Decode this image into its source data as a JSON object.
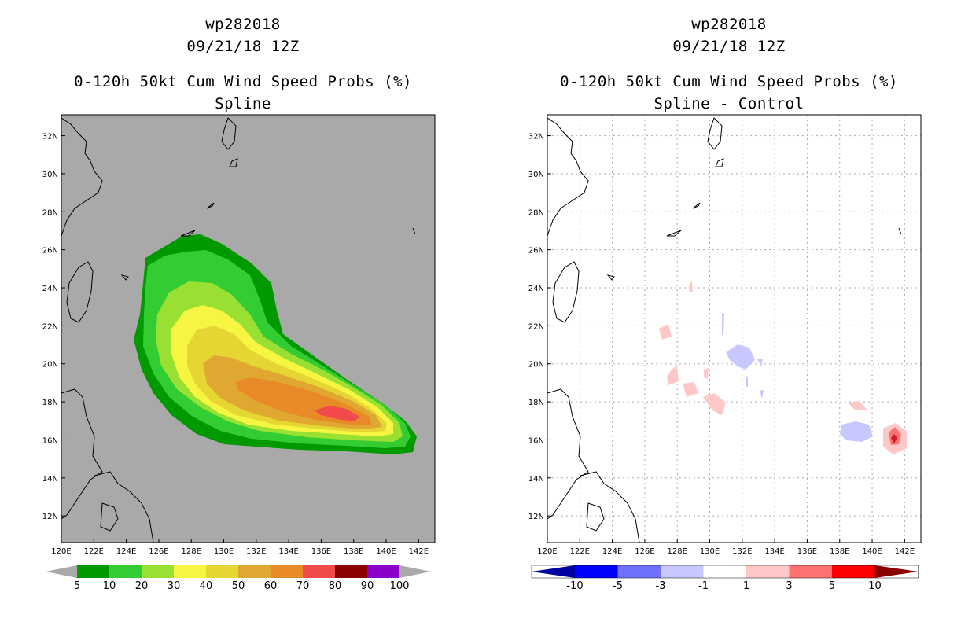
{
  "panels": [
    {
      "storm_id": "wp282018",
      "datetime": "09/21/18 12Z",
      "product": "0-120h 50kt Cum Wind Speed Probs (%)",
      "subtitle": "Spline",
      "background": "#a9a9a9",
      "colorbar": {
        "labels": [
          "5",
          "10",
          "20",
          "30",
          "40",
          "50",
          "60",
          "70",
          "80",
          "90",
          "100"
        ],
        "colors": [
          "#009a00",
          "#33cc33",
          "#99e033",
          "#f5f542",
          "#e6d633",
          "#e0a830",
          "#e88a28",
          "#f04a4a",
          "#8c0000",
          "#8a00c8"
        ]
      }
    },
    {
      "storm_id": "wp282018",
      "datetime": "09/21/18 12Z",
      "product": "0-120h 50kt Cum Wind Speed Probs (%)",
      "subtitle": "Spline - Control",
      "background": "#ffffff",
      "colorbar": {
        "labels": [
          "-10",
          "-5",
          "-3",
          "-1",
          "1",
          "3",
          "5",
          "10"
        ],
        "colors": [
          "#0000a0",
          "#0000ff",
          "#7070ff",
          "#c8c8ff",
          "#ffffff",
          "#ffc8c8",
          "#ff7070",
          "#ff0000",
          "#8c0000"
        ]
      }
    }
  ],
  "axes": {
    "lon_labels": [
      "120E",
      "122E",
      "124E",
      "126E",
      "128E",
      "130E",
      "132E",
      "134E",
      "136E",
      "138E",
      "140E",
      "142E"
    ],
    "lat_labels": [
      "32N",
      "30N",
      "28N",
      "26N",
      "24N",
      "22N",
      "20N",
      "18N",
      "16N",
      "14N",
      "12N"
    ],
    "lon_range": [
      120,
      143
    ],
    "lat_range": [
      10.6,
      33.1
    ]
  }
}
